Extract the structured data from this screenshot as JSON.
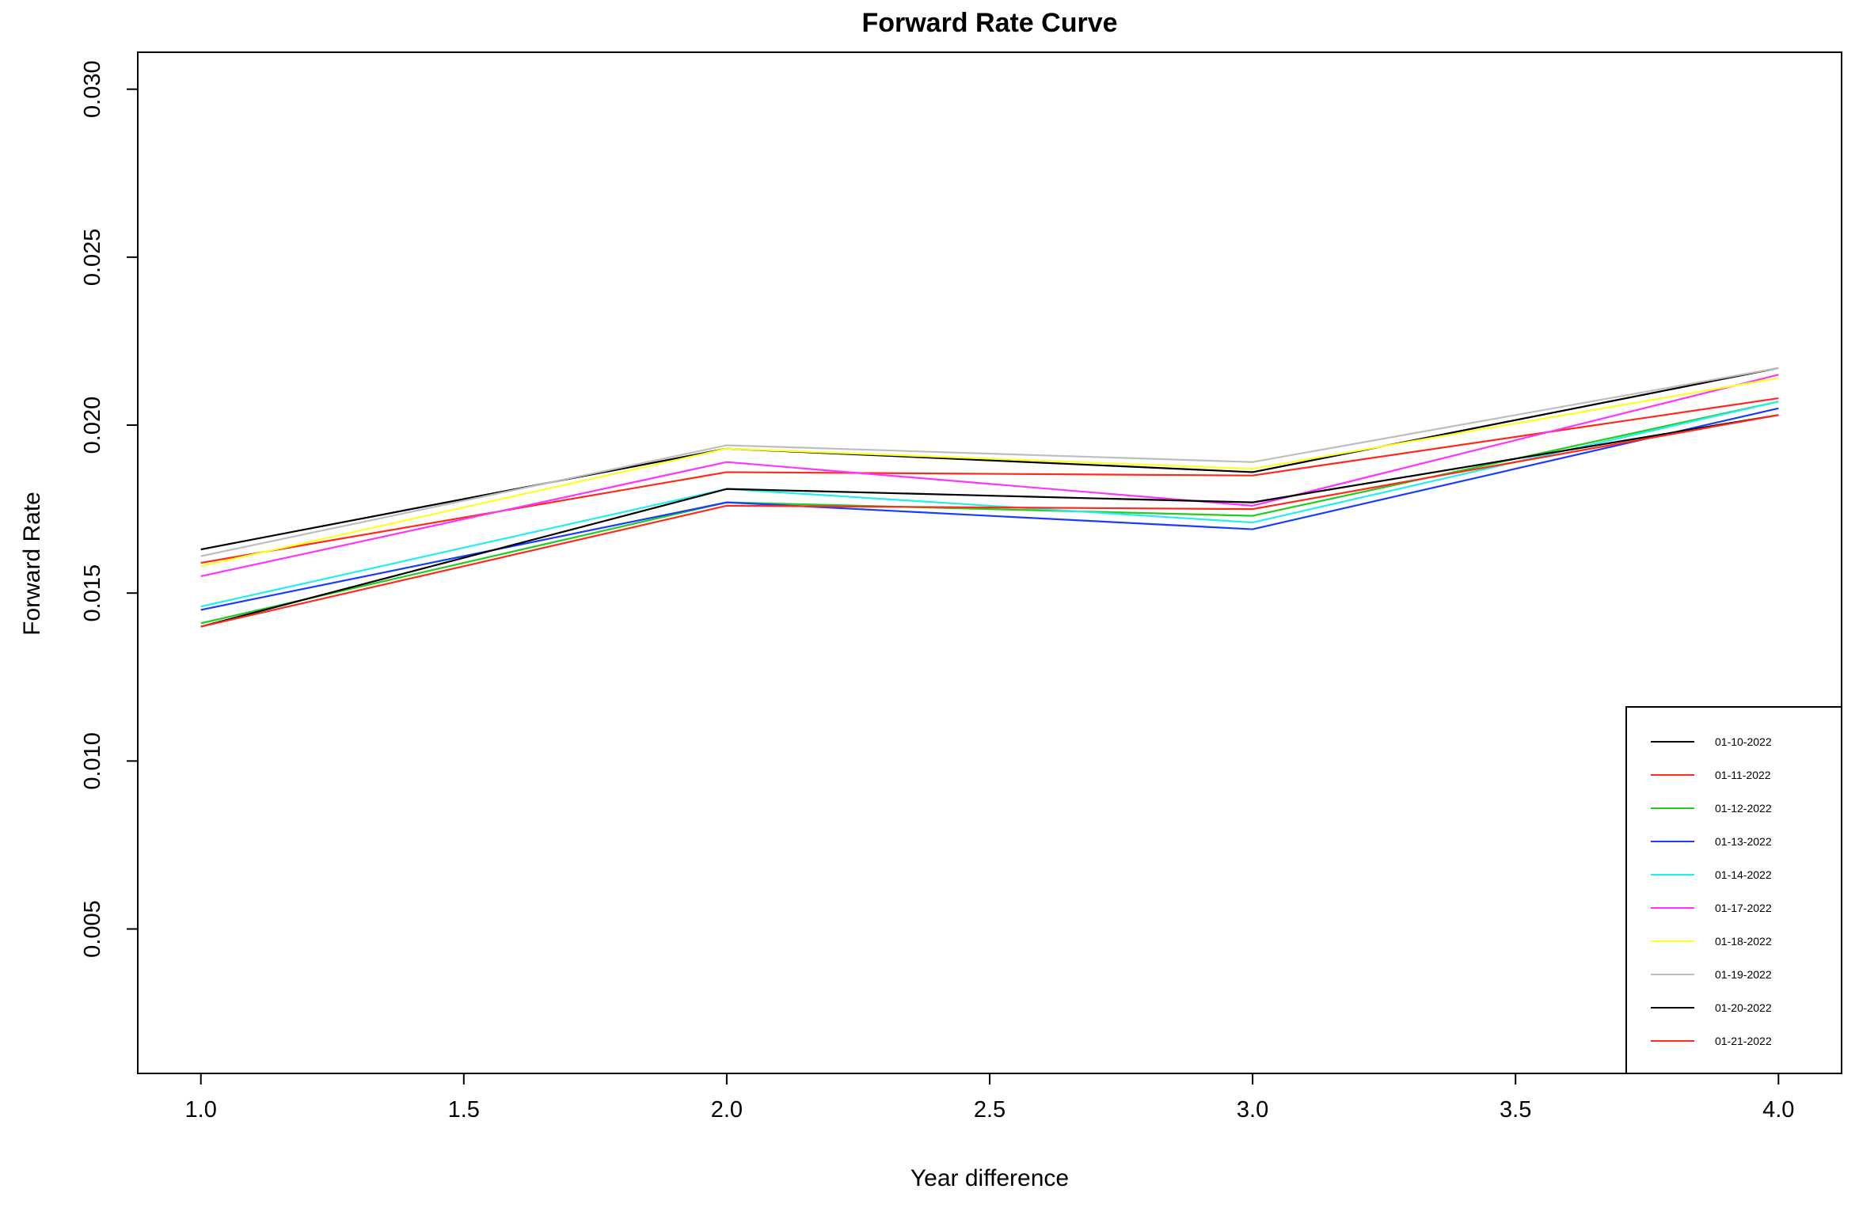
{
  "chart_data": {
    "type": "line",
    "title": "Forward Rate Curve",
    "xlabel": "Year difference",
    "ylabel": "Forward Rate",
    "xlim": [
      0.88,
      4.12
    ],
    "ylim": [
      0.0007,
      0.0311
    ],
    "x_ticks": [
      "1.0",
      "1.5",
      "2.0",
      "2.5",
      "3.0",
      "3.5",
      "4.0"
    ],
    "y_ticks": [
      "0.005",
      "0.010",
      "0.015",
      "0.020",
      "0.025",
      "0.030"
    ],
    "grid": false,
    "legend_position": "bottom-right",
    "x": [
      1,
      2,
      3,
      4
    ],
    "series": [
      {
        "name": "01-10-2022",
        "color": "#000000",
        "values": [
          0.0163,
          0.0193,
          0.0186,
          0.0217
        ]
      },
      {
        "name": "01-11-2022",
        "color": "#ff2a1a",
        "values": [
          0.0159,
          0.0186,
          0.0185,
          0.0208
        ]
      },
      {
        "name": "01-12-2022",
        "color": "#22cc22",
        "values": [
          0.0141,
          0.0177,
          0.0173,
          0.0207
        ]
      },
      {
        "name": "01-13-2022",
        "color": "#1a3cff",
        "values": [
          0.0145,
          0.0177,
          0.0169,
          0.0205
        ]
      },
      {
        "name": "01-14-2022",
        "color": "#22eeee",
        "values": [
          0.0146,
          0.0181,
          0.0171,
          0.0207
        ]
      },
      {
        "name": "01-17-2022",
        "color": "#ff33ff",
        "values": [
          0.0155,
          0.0189,
          0.0176,
          0.0215
        ]
      },
      {
        "name": "01-18-2022",
        "color": "#ffff22",
        "values": [
          0.0158,
          0.0193,
          0.0187,
          0.0214
        ]
      },
      {
        "name": "01-19-2022",
        "color": "#bebebe",
        "values": [
          0.0161,
          0.0194,
          0.0189,
          0.0217
        ]
      },
      {
        "name": "01-20-2022",
        "color": "#000000",
        "values": [
          0.014,
          0.0181,
          0.0177,
          0.0203
        ]
      },
      {
        "name": "01-21-2022",
        "color": "#ff2a1a",
        "values": [
          0.014,
          0.0176,
          0.0175,
          0.0203
        ]
      }
    ]
  }
}
